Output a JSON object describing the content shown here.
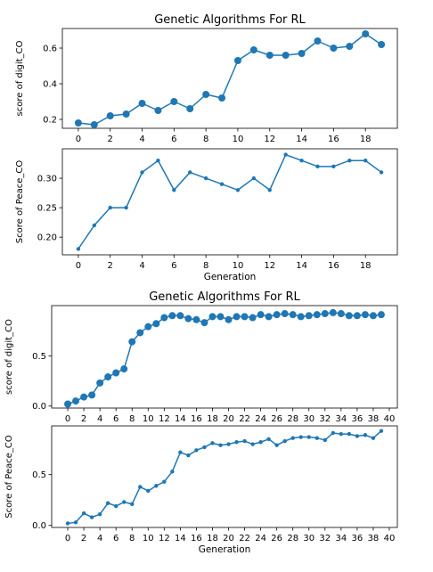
{
  "chart_data": [
    {
      "type": "line",
      "title": "Genetic Algorithms For RL",
      "xlabel": "",
      "ylabel": "score of digit_CO",
      "x": [
        0,
        1,
        2,
        3,
        4,
        5,
        6,
        7,
        8,
        9,
        10,
        11,
        12,
        13,
        14,
        15,
        16,
        17,
        18,
        19
      ],
      "series": [
        {
          "values": [
            0.18,
            0.17,
            0.22,
            0.23,
            0.29,
            0.25,
            0.3,
            0.26,
            0.34,
            0.32,
            0.53,
            0.59,
            0.56,
            0.56,
            0.57,
            0.64,
            0.6,
            0.61,
            0.68,
            0.62
          ]
        }
      ],
      "xlim": [
        -1,
        20
      ],
      "ylim": [
        0.15,
        0.71
      ],
      "xticks": [
        0,
        2,
        4,
        6,
        8,
        10,
        12,
        14,
        16,
        18
      ],
      "yticks": [
        0.2,
        0.4,
        0.6
      ],
      "ytick_labels": [
        "0.2",
        "0.4",
        "0.6"
      ],
      "marker": "large",
      "color": "#1f77b4"
    },
    {
      "type": "line",
      "title": "",
      "xlabel": "Generation",
      "ylabel": "Score of Peace_CO",
      "x": [
        0,
        1,
        2,
        3,
        4,
        5,
        6,
        7,
        8,
        9,
        10,
        11,
        12,
        13,
        14,
        15,
        16,
        17,
        18,
        19
      ],
      "series": [
        {
          "values": [
            0.18,
            0.22,
            0.25,
            0.25,
            0.31,
            0.33,
            0.28,
            0.31,
            0.3,
            0.29,
            0.28,
            0.3,
            0.28,
            0.34,
            0.33,
            0.32,
            0.32,
            0.33,
            0.33,
            0.31
          ]
        }
      ],
      "xlim": [
        -1,
        20
      ],
      "ylim": [
        0.17,
        0.35
      ],
      "xticks": [
        0,
        2,
        4,
        6,
        8,
        10,
        12,
        14,
        16,
        18
      ],
      "yticks": [
        0.2,
        0.25,
        0.3
      ],
      "ytick_labels": [
        "0.20",
        "0.25",
        "0.30"
      ],
      "marker": "small",
      "color": "#1f77b4"
    },
    {
      "type": "line",
      "title": "Genetic Algorithms For RL",
      "xlabel": "",
      "ylabel": "score of digit_CO",
      "x": [
        0,
        1,
        2,
        3,
        4,
        5,
        6,
        7,
        8,
        9,
        10,
        11,
        12,
        13,
        14,
        15,
        16,
        17,
        18,
        19,
        20,
        21,
        22,
        23,
        24,
        25,
        26,
        27,
        28,
        29,
        30,
        31,
        32,
        33,
        34,
        35,
        36,
        37,
        38,
        39
      ],
      "series": [
        {
          "values": [
            0.02,
            0.05,
            0.09,
            0.11,
            0.23,
            0.29,
            0.33,
            0.37,
            0.64,
            0.73,
            0.79,
            0.82,
            0.88,
            0.9,
            0.9,
            0.87,
            0.86,
            0.83,
            0.89,
            0.89,
            0.86,
            0.89,
            0.89,
            0.88,
            0.91,
            0.89,
            0.91,
            0.92,
            0.91,
            0.89,
            0.9,
            0.91,
            0.92,
            0.93,
            0.92,
            0.9,
            0.9,
            0.91,
            0.9,
            0.91
          ]
        }
      ],
      "xlim": [
        -2,
        41
      ],
      "ylim": [
        -0.02,
        1.0
      ],
      "xticks": [
        0,
        2,
        4,
        6,
        8,
        10,
        12,
        14,
        16,
        18,
        20,
        22,
        24,
        26,
        28,
        30,
        32,
        34,
        36,
        38,
        40
      ],
      "yticks": [
        0.0,
        0.5
      ],
      "ytick_labels": [
        "0.0",
        "0.5"
      ],
      "marker": "large",
      "color": "#1f77b4"
    },
    {
      "type": "line",
      "title": "",
      "xlabel": "Generation",
      "ylabel": "Score of Peace_CO",
      "x": [
        0,
        1,
        2,
        3,
        4,
        5,
        6,
        7,
        8,
        9,
        10,
        11,
        12,
        13,
        14,
        15,
        16,
        17,
        18,
        19,
        20,
        21,
        22,
        23,
        24,
        25,
        26,
        27,
        28,
        29,
        30,
        31,
        32,
        33,
        34,
        35,
        36,
        37,
        38,
        39
      ],
      "series": [
        {
          "values": [
            0.02,
            0.03,
            0.12,
            0.08,
            0.11,
            0.22,
            0.19,
            0.23,
            0.21,
            0.38,
            0.34,
            0.39,
            0.43,
            0.53,
            0.72,
            0.69,
            0.74,
            0.77,
            0.81,
            0.79,
            0.8,
            0.82,
            0.83,
            0.8,
            0.82,
            0.85,
            0.79,
            0.83,
            0.86,
            0.87,
            0.87,
            0.86,
            0.84,
            0.91,
            0.9,
            0.9,
            0.88,
            0.89,
            0.86,
            0.93
          ]
        }
      ],
      "xlim": [
        -2,
        41
      ],
      "ylim": [
        -0.02,
        0.98
      ],
      "xticks": [
        0,
        2,
        4,
        6,
        8,
        10,
        12,
        14,
        16,
        18,
        20,
        22,
        24,
        26,
        28,
        30,
        32,
        34,
        36,
        38,
        40
      ],
      "yticks": [
        0.0,
        0.5
      ],
      "ytick_labels": [
        "0.0",
        "0.5"
      ],
      "marker": "small",
      "color": "#1f77b4"
    }
  ]
}
